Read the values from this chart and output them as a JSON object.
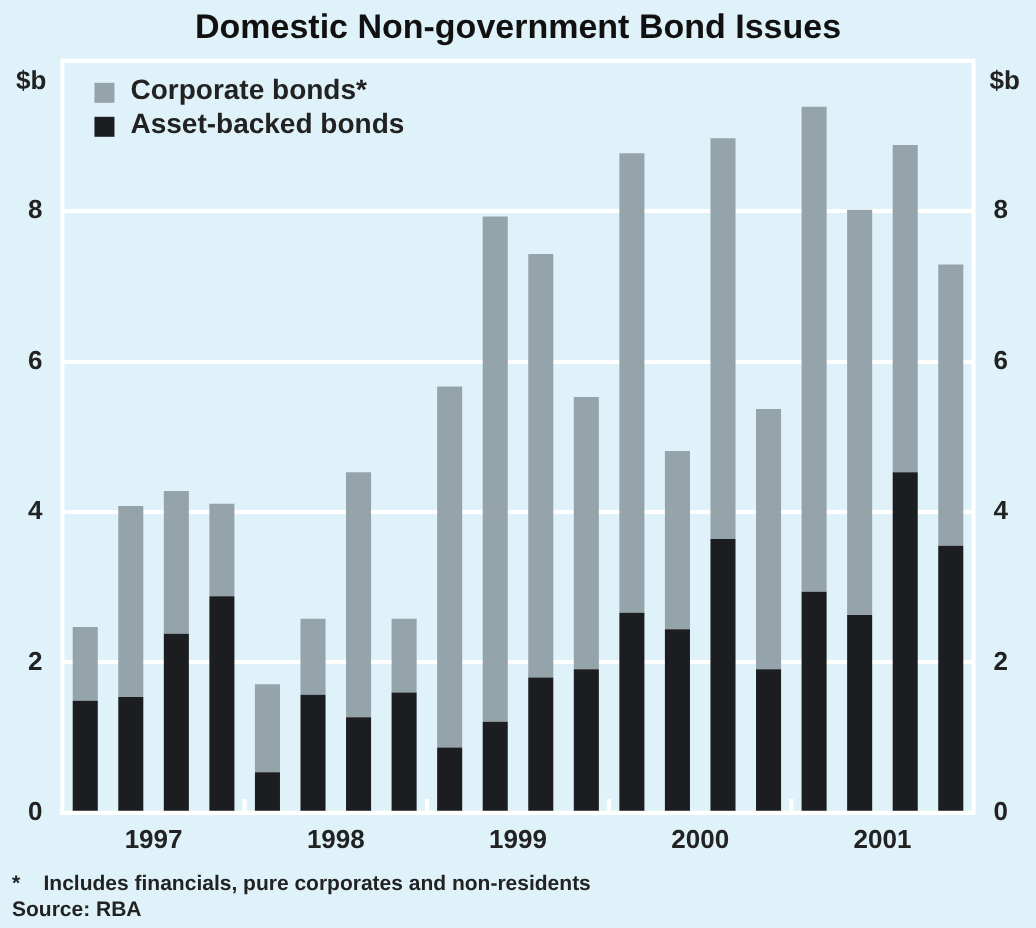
{
  "chart_data": {
    "type": "bar",
    "title": "Domestic Non-government Bond Issues",
    "ylabel": "$b",
    "y2label": "$b",
    "x": [
      1997.125,
      1997.375,
      1997.625,
      1997.875,
      1998.125,
      1998.375,
      1998.625,
      1998.875,
      1999.125,
      1999.375,
      1999.625,
      1999.875,
      2000.125,
      2000.375,
      2000.625,
      2000.875,
      2001.125,
      2001.375,
      2001.625,
      2001.875
    ],
    "xlim": [
      1997,
      2002
    ],
    "xticks": [
      {
        "value": 1997.5,
        "label": "1997"
      },
      {
        "value": 1998,
        "label": null
      },
      {
        "value": 1998.5,
        "label": "1998"
      },
      {
        "value": 1999,
        "label": null
      },
      {
        "value": 1999.5,
        "label": "1999"
      },
      {
        "value": 2000,
        "label": null
      },
      {
        "value": 2000.5,
        "label": "2000"
      },
      {
        "value": 2001,
        "label": null
      },
      {
        "value": 2001.5,
        "label": "2001"
      }
    ],
    "stacked": true,
    "series": [
      {
        "name": "Asset-backed bonds",
        "color": "#1c1d21",
        "values": [
          1.49,
          1.54,
          2.38,
          2.88,
          0.54,
          1.57,
          1.27,
          1.6,
          0.87,
          1.21,
          1.8,
          1.91,
          2.66,
          2.44,
          3.64,
          1.91,
          2.94,
          2.63,
          4.53,
          3.55
        ]
      },
      {
        "name": "Corporate bonds*",
        "color": "#95a3aa",
        "values": [
          0.98,
          2.54,
          1.9,
          1.23,
          1.17,
          1.01,
          3.26,
          0.98,
          4.8,
          6.72,
          5.63,
          3.62,
          6.11,
          2.37,
          5.33,
          3.46,
          6.45,
          5.39,
          4.35,
          3.74
        ]
      }
    ],
    "ylim": [
      0,
      10
    ],
    "yticks": [
      0,
      2,
      4,
      6,
      8
    ],
    "y2lim": [
      0,
      10
    ],
    "y2ticks": [
      0,
      2,
      4,
      6,
      8
    ],
    "grid": "y",
    "legend": "top left",
    "annotations": [
      "*    Includes financials, pure corporates and non-residents",
      "Source: RBA"
    ]
  }
}
